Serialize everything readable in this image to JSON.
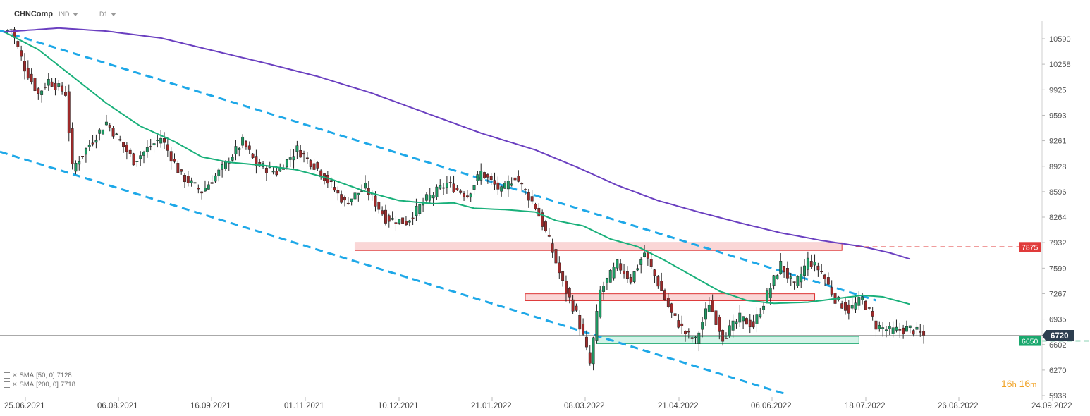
{
  "header": {
    "symbol": "CHNComp",
    "type": "IND",
    "timeframe": "D1"
  },
  "legend": [
    {
      "label": "SMA",
      "params": "[50, 0]",
      "value": "7128",
      "color": "#19b07a"
    },
    {
      "label": "SMA",
      "params": "[200, 0]",
      "value": "7718",
      "color": "#6a3fc0"
    }
  ],
  "timer": {
    "h": "16",
    "h_unit": "h",
    "m": "16",
    "m_unit": "m"
  },
  "chart_data": {
    "type": "candlestick",
    "ylim": [
      5938,
      10850
    ],
    "y_ticks": [
      10590,
      10258,
      9925,
      9593,
      9261,
      8928,
      8596,
      8264,
      7932,
      7599,
      7267,
      6935,
      6602,
      6270,
      5938
    ],
    "x_ticks": [
      "25.06.2021",
      "06.08.2021",
      "16.09.2021",
      "01.11.2021",
      "10.12.2021",
      "21.01.2022",
      "08.03.2022",
      "21.04.2022",
      "06.06.2022",
      "18.07.2022",
      "26.08.2022",
      "24.09.2022"
    ],
    "price_keypoints": [
      [
        0,
        10690
      ],
      [
        2,
        10720
      ],
      [
        6,
        10210
      ],
      [
        10,
        9870
      ],
      [
        13,
        10050
      ],
      [
        18,
        9880
      ],
      [
        20,
        8900
      ],
      [
        24,
        9150
      ],
      [
        30,
        9500
      ],
      [
        38,
        9000
      ],
      [
        46,
        9300
      ],
      [
        52,
        8800
      ],
      [
        58,
        8600
      ],
      [
        64,
        8900
      ],
      [
        70,
        9250
      ],
      [
        74,
        8950
      ],
      [
        80,
        8850
      ],
      [
        86,
        9150
      ],
      [
        92,
        8900
      ],
      [
        100,
        8450
      ],
      [
        106,
        8650
      ],
      [
        112,
        8250
      ],
      [
        118,
        8200
      ],
      [
        124,
        8500
      ],
      [
        130,
        8700
      ],
      [
        136,
        8550
      ],
      [
        140,
        8850
      ],
      [
        146,
        8600
      ],
      [
        150,
        8800
      ],
      [
        156,
        8400
      ],
      [
        160,
        7950
      ],
      [
        164,
        7400
      ],
      [
        168,
        7000
      ],
      [
        170,
        6700
      ],
      [
        172,
        6350
      ],
      [
        175,
        7300
      ],
      [
        180,
        7650
      ],
      [
        184,
        7450
      ],
      [
        188,
        7800
      ],
      [
        192,
        7400
      ],
      [
        196,
        7000
      ],
      [
        200,
        6750
      ],
      [
        203,
        6650
      ],
      [
        207,
        7150
      ],
      [
        211,
        6700
      ],
      [
        216,
        6950
      ],
      [
        220,
        6850
      ],
      [
        224,
        7250
      ],
      [
        228,
        7650
      ],
      [
        232,
        7350
      ],
      [
        236,
        7700
      ],
      [
        240,
        7550
      ],
      [
        244,
        7200
      ],
      [
        248,
        7050
      ],
      [
        252,
        7200
      ],
      [
        256,
        6850
      ],
      [
        260,
        6780
      ],
      [
        266,
        6810
      ],
      [
        270,
        6720
      ]
    ],
    "last_price": 6720,
    "last_bar_index": 270,
    "sma": [
      {
        "name": "SMA [50, 0]",
        "color": "#19b07a",
        "points": [
          [
            0,
            10680
          ],
          [
            10,
            10450
          ],
          [
            20,
            10100
          ],
          [
            30,
            9750
          ],
          [
            40,
            9450
          ],
          [
            50,
            9250
          ],
          [
            58,
            9050
          ],
          [
            66,
            8980
          ],
          [
            76,
            8940
          ],
          [
            86,
            8880
          ],
          [
            96,
            8760
          ],
          [
            106,
            8600
          ],
          [
            116,
            8480
          ],
          [
            126,
            8440
          ],
          [
            132,
            8450
          ],
          [
            138,
            8380
          ],
          [
            148,
            8360
          ],
          [
            156,
            8330
          ],
          [
            162,
            8220
          ],
          [
            170,
            8150
          ],
          [
            178,
            7980
          ],
          [
            186,
            7880
          ],
          [
            194,
            7700
          ],
          [
            202,
            7500
          ],
          [
            210,
            7300
          ],
          [
            218,
            7180
          ],
          [
            226,
            7140
          ],
          [
            236,
            7155
          ],
          [
            244,
            7200
          ],
          [
            252,
            7245
          ],
          [
            258,
            7225
          ],
          [
            266,
            7128
          ]
        ]
      },
      {
        "name": "SMA [200, 0]",
        "color": "#6a3fc0",
        "points": [
          [
            0,
            10680
          ],
          [
            16,
            10730
          ],
          [
            30,
            10690
          ],
          [
            46,
            10600
          ],
          [
            60,
            10450
          ],
          [
            76,
            10280
          ],
          [
            92,
            10100
          ],
          [
            108,
            9880
          ],
          [
            124,
            9620
          ],
          [
            140,
            9360
          ],
          [
            156,
            9140
          ],
          [
            168,
            8920
          ],
          [
            180,
            8680
          ],
          [
            192,
            8480
          ],
          [
            204,
            8330
          ],
          [
            216,
            8190
          ],
          [
            228,
            8060
          ],
          [
            240,
            7960
          ],
          [
            252,
            7880
          ],
          [
            260,
            7800
          ],
          [
            266,
            7718
          ]
        ]
      }
    ],
    "trendlines": [
      {
        "from": [
          0,
          10680
        ],
        "to": [
          256,
          7180
        ],
        "color": "#1ea8e8",
        "dash": true
      },
      {
        "from": [
          0,
          9100
        ],
        "to": [
          230,
          5950
        ],
        "color": "#1ea8e8",
        "dash": true
      }
    ],
    "zones": [
      {
        "x0": 103,
        "x1": 246,
        "y0": 7830,
        "y1": 7930,
        "color": "red"
      },
      {
        "x0": 153,
        "x1": 238,
        "y0": 7175,
        "y1": 7265,
        "color": "red"
      },
      {
        "x0": 174,
        "x1": 251,
        "y0": 6615,
        "y1": 6710,
        "color": "green"
      }
    ],
    "level_lines": [
      {
        "value": 7875,
        "label": "7875",
        "color": "#e03a3a",
        "from_bar": 103
      },
      {
        "value": 6650,
        "label": "6650",
        "color": "#1aa86e",
        "from_bar": 174
      }
    ],
    "last_price_label": "6720",
    "grid": false,
    "candle_up_color": "#1d9a63",
    "candle_down_color": "#9e2a2a"
  }
}
